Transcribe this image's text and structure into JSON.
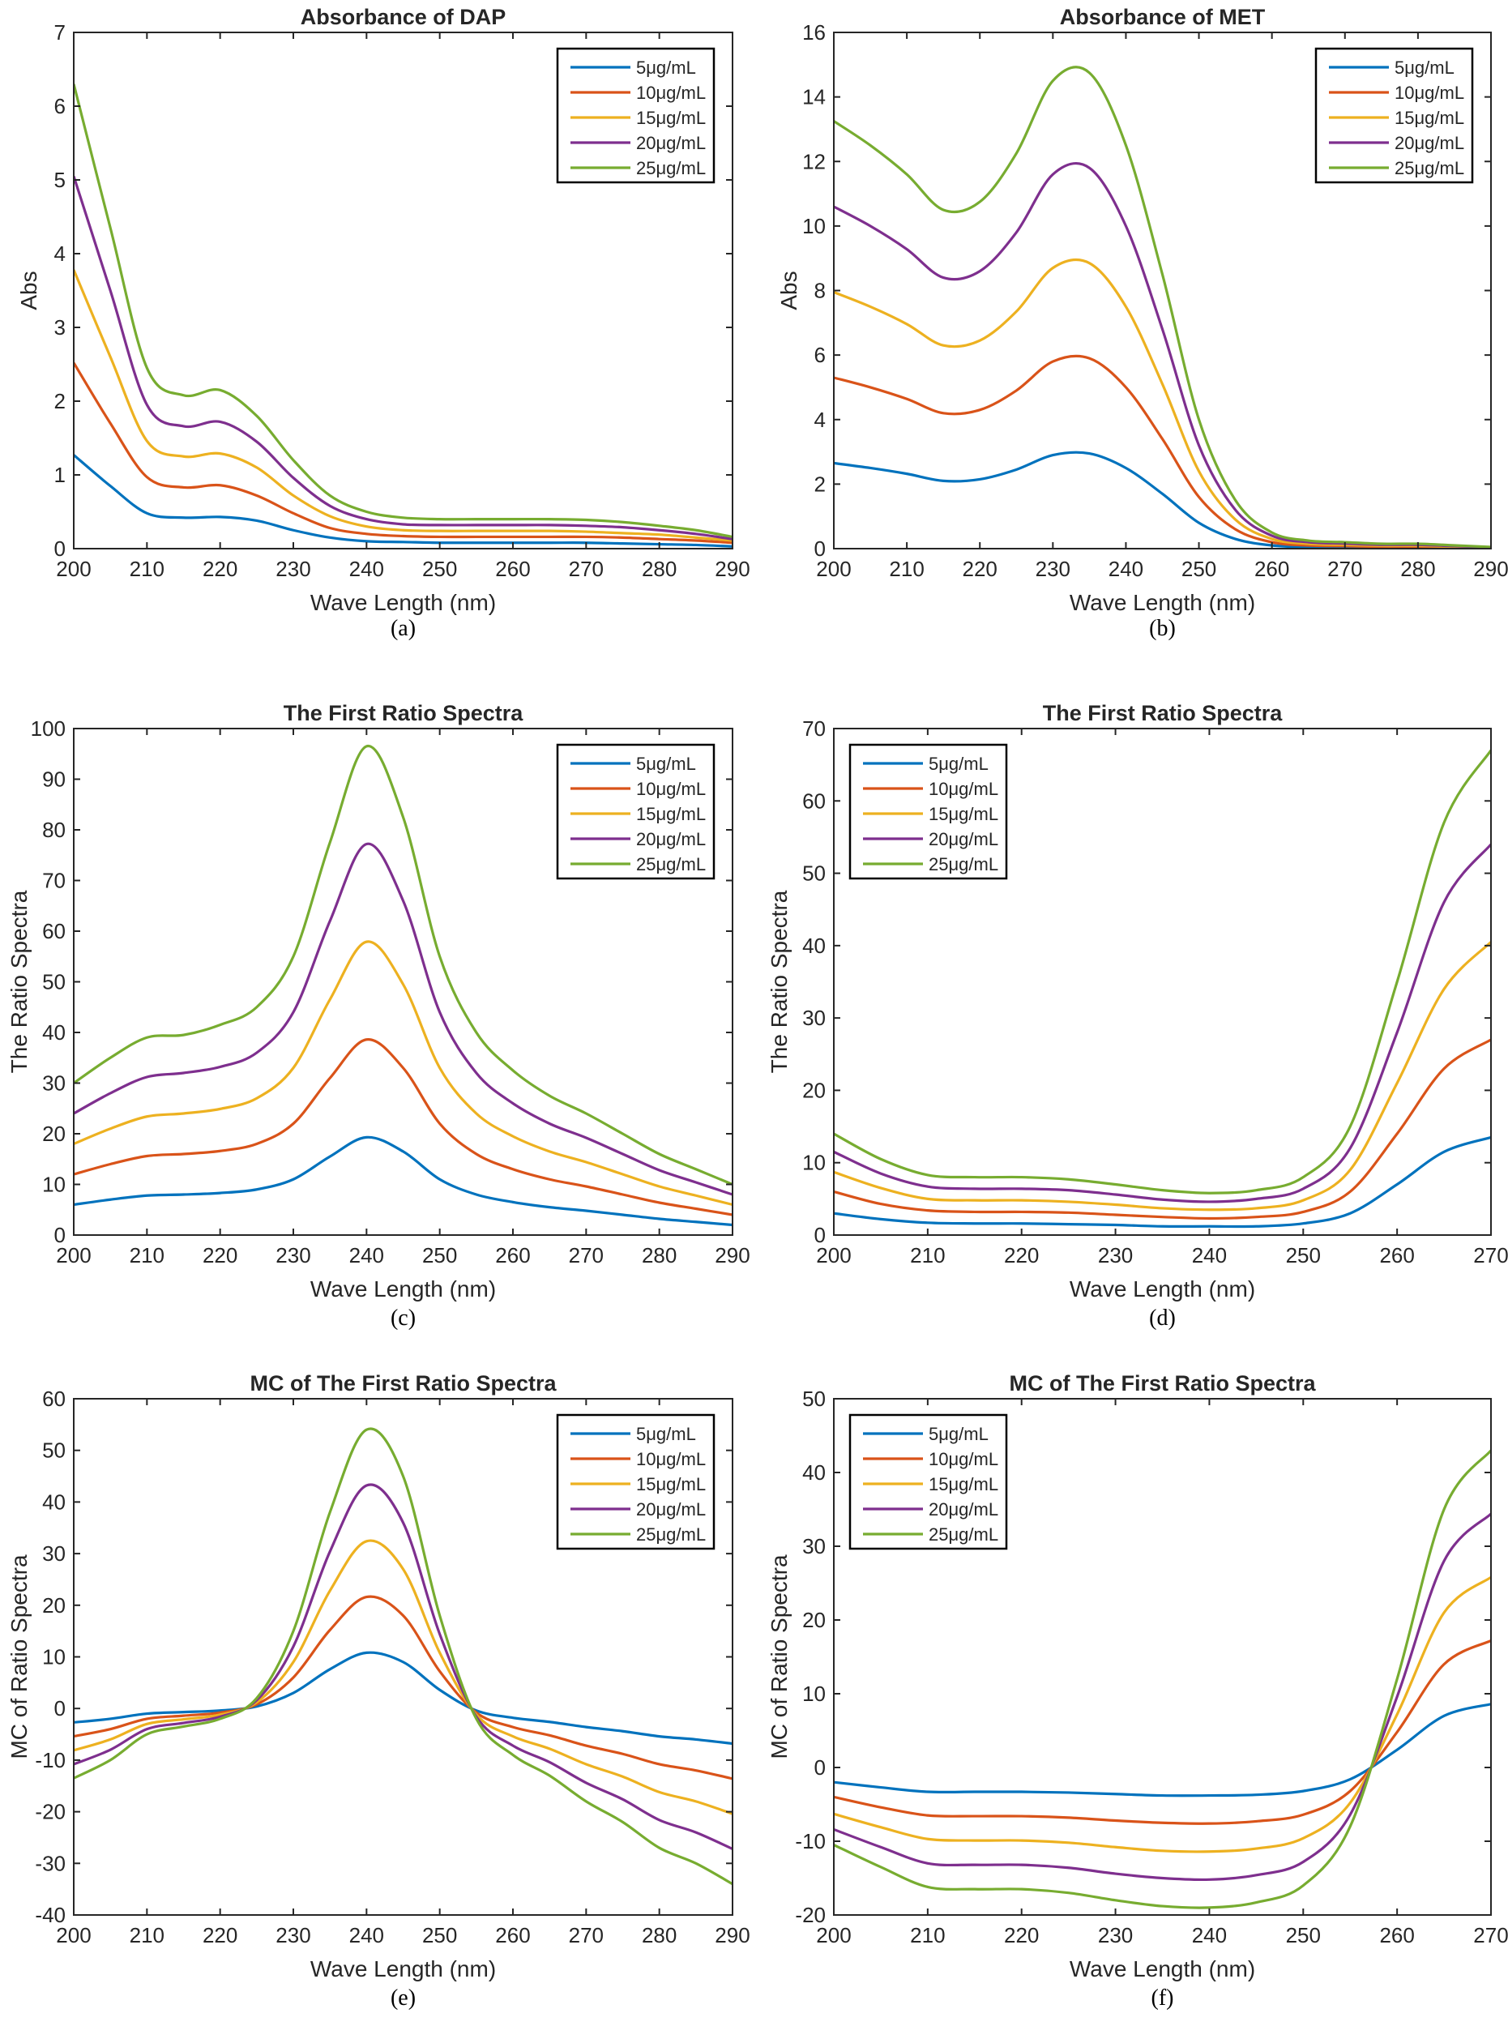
{
  "colors": [
    "#0072BD",
    "#D95319",
    "#EDB120",
    "#7E2F8E",
    "#77AC30"
  ],
  "chart_data": [
    {
      "caption": "(a)",
      "type": "line",
      "title": "Absorbance of DAP",
      "xlabel": "Wave Length (nm)",
      "ylabel": "Abs",
      "xlim": [
        200,
        290
      ],
      "ylim": [
        0,
        7
      ],
      "xticks": [
        200,
        210,
        220,
        230,
        240,
        250,
        260,
        270,
        280,
        290
      ],
      "yticks": [
        0,
        1,
        2,
        3,
        4,
        5,
        6,
        7
      ],
      "legend": "top-right",
      "grid": false,
      "x": [
        200,
        205,
        210,
        215,
        220,
        225,
        230,
        235,
        240,
        245,
        250,
        255,
        260,
        265,
        270,
        275,
        280,
        285,
        290
      ],
      "series": [
        {
          "name": "5μg/mL",
          "values": [
            1.27,
            0.85,
            0.48,
            0.42,
            0.43,
            0.38,
            0.25,
            0.15,
            0.1,
            0.09,
            0.08,
            0.08,
            0.08,
            0.08,
            0.08,
            0.07,
            0.06,
            0.05,
            0.03
          ]
        },
        {
          "name": "10μg/mL",
          "values": [
            2.52,
            1.7,
            0.97,
            0.83,
            0.86,
            0.72,
            0.48,
            0.28,
            0.2,
            0.17,
            0.16,
            0.16,
            0.16,
            0.16,
            0.16,
            0.15,
            0.13,
            0.11,
            0.08
          ]
        },
        {
          "name": "15μg/mL",
          "values": [
            3.78,
            2.6,
            1.46,
            1.25,
            1.29,
            1.1,
            0.72,
            0.44,
            0.3,
            0.25,
            0.24,
            0.24,
            0.24,
            0.24,
            0.23,
            0.21,
            0.19,
            0.15,
            0.11
          ]
        },
        {
          "name": "20μg/mL",
          "values": [
            5.05,
            3.5,
            1.95,
            1.66,
            1.72,
            1.45,
            0.96,
            0.58,
            0.4,
            0.33,
            0.32,
            0.32,
            0.32,
            0.32,
            0.31,
            0.29,
            0.25,
            0.2,
            0.13
          ]
        },
        {
          "name": "25μg/mL",
          "values": [
            6.3,
            4.35,
            2.45,
            2.08,
            2.15,
            1.8,
            1.2,
            0.72,
            0.5,
            0.42,
            0.4,
            0.4,
            0.4,
            0.4,
            0.39,
            0.36,
            0.31,
            0.25,
            0.16
          ]
        }
      ]
    },
    {
      "caption": "(b)",
      "type": "line",
      "title": "Absorbance of MET",
      "xlabel": "Wave Length (nm)",
      "ylabel": "Abs",
      "xlim": [
        200,
        290
      ],
      "ylim": [
        0,
        16
      ],
      "xticks": [
        200,
        210,
        220,
        230,
        240,
        250,
        260,
        270,
        280,
        290
      ],
      "yticks": [
        0,
        2,
        4,
        6,
        8,
        10,
        12,
        14,
        16
      ],
      "legend": "top-right",
      "grid": false,
      "x": [
        200,
        205,
        210,
        215,
        220,
        225,
        230,
        235,
        240,
        245,
        250,
        255,
        260,
        265,
        270,
        275,
        280,
        285,
        290
      ],
      "series": [
        {
          "name": "5μg/mL",
          "values": [
            2.65,
            2.5,
            2.32,
            2.1,
            2.15,
            2.45,
            2.9,
            2.95,
            2.5,
            1.7,
            0.8,
            0.3,
            0.1,
            0.05,
            0.04,
            0.03,
            0.03,
            0.02,
            0.01
          ]
        },
        {
          "name": "10μg/mL",
          "values": [
            5.3,
            5.0,
            4.64,
            4.2,
            4.3,
            4.9,
            5.8,
            5.9,
            5.0,
            3.4,
            1.6,
            0.6,
            0.2,
            0.1,
            0.08,
            0.06,
            0.06,
            0.04,
            0.02
          ]
        },
        {
          "name": "15μg/mL",
          "values": [
            7.95,
            7.5,
            6.96,
            6.3,
            6.45,
            7.35,
            8.7,
            8.85,
            7.5,
            5.1,
            2.4,
            0.9,
            0.3,
            0.15,
            0.12,
            0.09,
            0.09,
            0.06,
            0.03
          ]
        },
        {
          "name": "20μg/mL",
          "values": [
            10.6,
            10.0,
            9.28,
            8.4,
            8.6,
            9.8,
            11.6,
            11.8,
            10.0,
            6.8,
            3.2,
            1.2,
            0.4,
            0.2,
            0.16,
            0.12,
            0.12,
            0.08,
            0.04
          ]
        },
        {
          "name": "25μg/mL",
          "values": [
            13.25,
            12.5,
            11.6,
            10.5,
            10.75,
            12.25,
            14.5,
            14.75,
            12.5,
            8.5,
            4.0,
            1.5,
            0.5,
            0.25,
            0.2,
            0.15,
            0.15,
            0.1,
            0.05
          ]
        }
      ]
    },
    {
      "caption": "(c)",
      "type": "line",
      "title": "The First Ratio Spectra",
      "xlabel": "Wave Length (nm)",
      "ylabel": "The Ratio Spectra",
      "xlim": [
        200,
        290
      ],
      "ylim": [
        0,
        100
      ],
      "xticks": [
        200,
        210,
        220,
        230,
        240,
        250,
        260,
        270,
        280,
        290
      ],
      "yticks": [
        0,
        10,
        20,
        30,
        40,
        50,
        60,
        70,
        80,
        90,
        100
      ],
      "legend": "top-right",
      "grid": false,
      "x": [
        200,
        205,
        210,
        215,
        220,
        225,
        230,
        235,
        240,
        245,
        250,
        255,
        260,
        265,
        270,
        275,
        280,
        285,
        290
      ],
      "series": [
        {
          "name": "5μg/mL",
          "values": [
            6,
            7,
            7.8,
            8,
            8.3,
            9,
            11,
            15.5,
            19.3,
            16.5,
            11,
            8,
            6.5,
            5.5,
            4.8,
            4,
            3.2,
            2.6,
            2
          ]
        },
        {
          "name": "10μg/mL",
          "values": [
            12,
            14,
            15.6,
            16,
            16.6,
            18,
            22,
            31,
            38.6,
            33,
            22,
            16,
            13,
            11,
            9.6,
            8,
            6.4,
            5.2,
            4
          ]
        },
        {
          "name": "15μg/mL",
          "values": [
            18,
            21,
            23.4,
            24,
            24.9,
            27,
            33,
            46.5,
            57.9,
            49.5,
            33,
            24,
            19.5,
            16.5,
            14.4,
            12,
            9.6,
            7.8,
            6
          ]
        },
        {
          "name": "20μg/mL",
          "values": [
            24,
            28,
            31.2,
            32,
            33.2,
            36,
            44,
            62,
            77.2,
            66,
            44,
            32,
            26,
            22,
            19.2,
            16,
            12.8,
            10.4,
            8
          ]
        },
        {
          "name": "25μg/mL",
          "values": [
            30,
            35,
            39,
            39.5,
            41.5,
            45,
            55,
            77.5,
            96.5,
            82.5,
            55,
            40,
            32.5,
            27.5,
            24,
            20,
            16,
            13,
            10
          ]
        }
      ]
    },
    {
      "caption": "(d)",
      "type": "line",
      "title": "The First Ratio Spectra",
      "xlabel": "Wave Length (nm)",
      "ylabel": "The Ratio Spectra",
      "xlim": [
        200,
        270
      ],
      "ylim": [
        0,
        70
      ],
      "xticks": [
        200,
        210,
        220,
        230,
        240,
        250,
        260,
        270
      ],
      "yticks": [
        0,
        10,
        20,
        30,
        40,
        50,
        60,
        70
      ],
      "legend": "top-left",
      "grid": false,
      "x": [
        200,
        205,
        210,
        215,
        220,
        225,
        230,
        235,
        240,
        245,
        250,
        255,
        260,
        265,
        270
      ],
      "series": [
        {
          "name": "5μg/mL",
          "values": [
            3,
            2.2,
            1.7,
            1.6,
            1.6,
            1.5,
            1.4,
            1.2,
            1.2,
            1.2,
            1.6,
            3,
            7,
            11.5,
            13.5
          ]
        },
        {
          "name": "10μg/mL",
          "values": [
            6,
            4.3,
            3.4,
            3.2,
            3.2,
            3.1,
            2.8,
            2.5,
            2.3,
            2.5,
            3.2,
            6,
            14,
            23,
            27
          ]
        },
        {
          "name": "15μg/mL",
          "values": [
            8.7,
            6.5,
            5.0,
            4.8,
            4.8,
            4.6,
            4.2,
            3.7,
            3.5,
            3.7,
            4.8,
            9,
            21,
            34,
            40.5
          ]
        },
        {
          "name": "20μg/mL",
          "values": [
            11.5,
            8.5,
            6.7,
            6.4,
            6.4,
            6.2,
            5.6,
            4.9,
            4.6,
            5,
            6.4,
            12,
            28,
            46,
            54
          ]
        },
        {
          "name": "25μg/mL",
          "values": [
            14,
            10.5,
            8.3,
            8,
            8,
            7.7,
            7,
            6.2,
            5.8,
            6.2,
            8,
            15,
            35,
            57,
            67
          ]
        }
      ]
    },
    {
      "caption": "(e)",
      "type": "line",
      "title": "MC of The First Ratio Spectra",
      "xlabel": "Wave Length (nm)",
      "ylabel": "MC of Ratio Spectra",
      "xlim": [
        200,
        290
      ],
      "ylim": [
        -40,
        60
      ],
      "xticks": [
        200,
        210,
        220,
        230,
        240,
        250,
        260,
        270,
        280,
        290
      ],
      "yticks": [
        -40,
        -30,
        -20,
        -10,
        0,
        10,
        20,
        30,
        40,
        50,
        60
      ],
      "legend": "top-right",
      "grid": false,
      "x": [
        200,
        205,
        210,
        215,
        220,
        225,
        230,
        235,
        240,
        245,
        250,
        255,
        260,
        265,
        270,
        275,
        280,
        285,
        290
      ],
      "series": [
        {
          "name": "5μg/mL",
          "values": [
            -2.7,
            -2,
            -1,
            -0.7,
            -0.4,
            0.4,
            3,
            7.6,
            10.8,
            9,
            3.6,
            -0.4,
            -1.8,
            -2.6,
            -3.6,
            -4.4,
            -5.4,
            -6,
            -6.8
          ]
        },
        {
          "name": "10μg/mL",
          "values": [
            -5.4,
            -4,
            -2,
            -1.4,
            -0.8,
            0.8,
            6,
            15.2,
            21.6,
            18,
            7.2,
            -0.8,
            -3.6,
            -5.2,
            -7.2,
            -8.8,
            -10.8,
            -12,
            -13.6
          ]
        },
        {
          "name": "15μg/mL",
          "values": [
            -8.1,
            -6,
            -3,
            -2.1,
            -1.2,
            1.2,
            9,
            22.8,
            32.4,
            27,
            10.8,
            -1.2,
            -5.4,
            -7.8,
            -10.8,
            -13.2,
            -16.2,
            -18,
            -20.4
          ]
        },
        {
          "name": "20μg/mL",
          "values": [
            -10.8,
            -8,
            -4,
            -2.8,
            -1.6,
            1.6,
            12,
            30.4,
            43.2,
            36,
            14.4,
            -1.6,
            -7.2,
            -10.4,
            -14.4,
            -17.6,
            -21.6,
            -24,
            -27.2
          ]
        },
        {
          "name": "25μg/mL",
          "values": [
            -13.5,
            -10,
            -5,
            -3.5,
            -2,
            2,
            15,
            38,
            54,
            45,
            18,
            -2,
            -9,
            -13,
            -18,
            -22,
            -27,
            -30,
            -34
          ]
        }
      ]
    },
    {
      "caption": "(f)",
      "type": "line",
      "title": "MC of The First Ratio Spectra",
      "xlabel": "Wave Length (nm)",
      "ylabel": "MC of Ratio Spectra",
      "xlim": [
        200,
        270
      ],
      "ylim": [
        -20,
        50
      ],
      "xticks": [
        200,
        210,
        220,
        230,
        240,
        250,
        260,
        270
      ],
      "yticks": [
        -20,
        -10,
        0,
        10,
        20,
        30,
        40,
        50
      ],
      "legend": "top-left",
      "grid": false,
      "x": [
        200,
        205,
        210,
        215,
        220,
        225,
        230,
        235,
        240,
        245,
        250,
        255,
        260,
        265,
        270
      ],
      "series": [
        {
          "name": "5μg/mL",
          "values": [
            -2,
            -2.7,
            -3.3,
            -3.3,
            -3.3,
            -3.4,
            -3.6,
            -3.8,
            -3.8,
            -3.7,
            -3.2,
            -1.6,
            2.4,
            7,
            8.6
          ]
        },
        {
          "name": "10μg/mL",
          "values": [
            -4,
            -5.4,
            -6.5,
            -6.6,
            -6.6,
            -6.8,
            -7.2,
            -7.5,
            -7.6,
            -7.3,
            -6.4,
            -3.2,
            4.8,
            14,
            17.2
          ]
        },
        {
          "name": "15μg/mL",
          "values": [
            -6.3,
            -8.1,
            -9.7,
            -9.9,
            -9.9,
            -10.2,
            -10.8,
            -11.3,
            -11.4,
            -11,
            -9.6,
            -4.8,
            7.2,
            21,
            25.8
          ]
        },
        {
          "name": "20μg/mL",
          "values": [
            -8.4,
            -10.8,
            -13,
            -13.2,
            -13.2,
            -13.6,
            -14.4,
            -15,
            -15.2,
            -14.6,
            -12.8,
            -6.4,
            9.6,
            28,
            34.4
          ]
        },
        {
          "name": "25μg/mL",
          "values": [
            -10.5,
            -13.5,
            -16.2,
            -16.5,
            -16.5,
            -17,
            -18,
            -18.8,
            -19,
            -18.3,
            -16,
            -8,
            12,
            35,
            43
          ]
        }
      ]
    }
  ]
}
